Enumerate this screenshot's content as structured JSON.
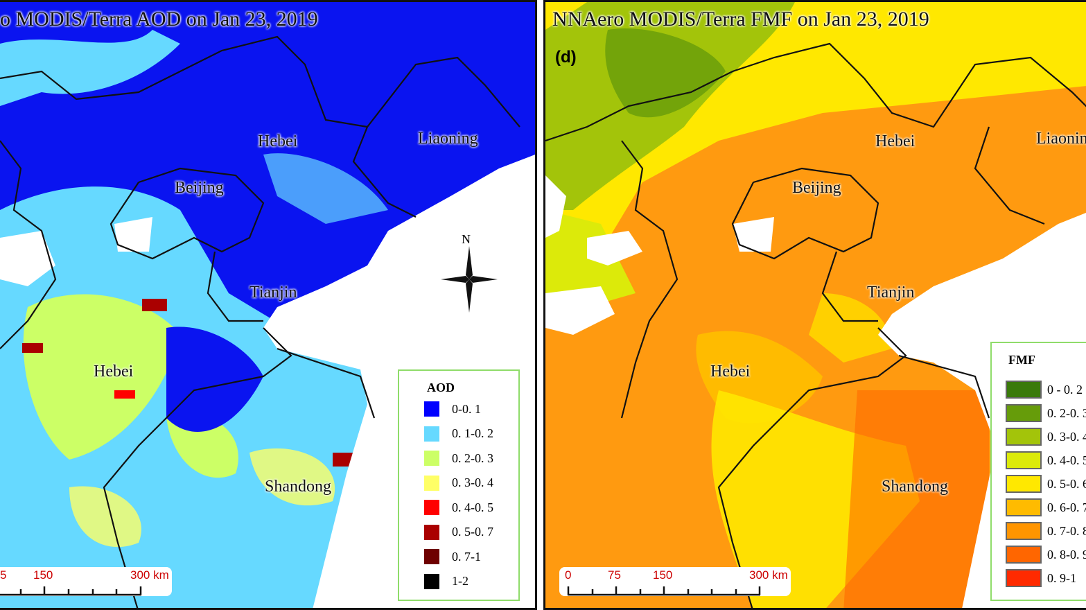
{
  "left_panel": {
    "title": "o MODIS/Terra AOD on Jan 23, 2019",
    "place_labels": [
      "Hebei",
      "Liaoning",
      "Beijing",
      "Tianjin",
      "Hebei",
      "Shandong"
    ],
    "compass_label": "N",
    "legend": {
      "title": "AOD",
      "items": [
        {
          "label": "0-0. 1",
          "color": "#0000ff"
        },
        {
          "label": "0. 1-0. 2",
          "color": "#66d9ff"
        },
        {
          "label": "0. 2-0. 3",
          "color": "#ccff66"
        },
        {
          "label": "0. 3-0. 4",
          "color": "#ffff66"
        },
        {
          "label": "0. 4-0. 5",
          "color": "#ff0000"
        },
        {
          "label": "0. 5-0. 7",
          "color": "#aa0000"
        },
        {
          "label": "0. 7-1",
          "color": "#6e0000"
        },
        {
          "label": "1-2",
          "color": "#000000"
        }
      ]
    },
    "scale_bar": {
      "labels": [
        "5",
        "150",
        "300 km"
      ]
    }
  },
  "right_panel": {
    "panel_letter": "(d)",
    "title": "NNAero MODIS/Terra FMF on Jan 23, 2019",
    "place_labels": [
      "Hebei",
      "Liaonin",
      "Beijing",
      "Tianjin",
      "Hebei",
      "Shandong"
    ],
    "legend": {
      "title": "FMF",
      "items": [
        {
          "label": "0 - 0. 2",
          "color": "#3a7a0a"
        },
        {
          "label": "0. 2-0. 3",
          "color": "#669c0a"
        },
        {
          "label": "0. 3-0. 4",
          "color": "#a3c40a"
        },
        {
          "label": "0. 4-0. 5",
          "color": "#dcea0a"
        },
        {
          "label": "0. 5-0. 6",
          "color": "#ffe800"
        },
        {
          "label": "0. 6-0. 7",
          "color": "#ffbb00"
        },
        {
          "label": "0. 7-0. 8",
          "color": "#ff9500"
        },
        {
          "label": "0. 8-0. 9",
          "color": "#ff6600"
        },
        {
          "label": "0. 9-1",
          "color": "#ff2a00"
        }
      ]
    },
    "scale_bar": {
      "labels": [
        "0",
        "75",
        "150",
        "300 km"
      ]
    }
  }
}
